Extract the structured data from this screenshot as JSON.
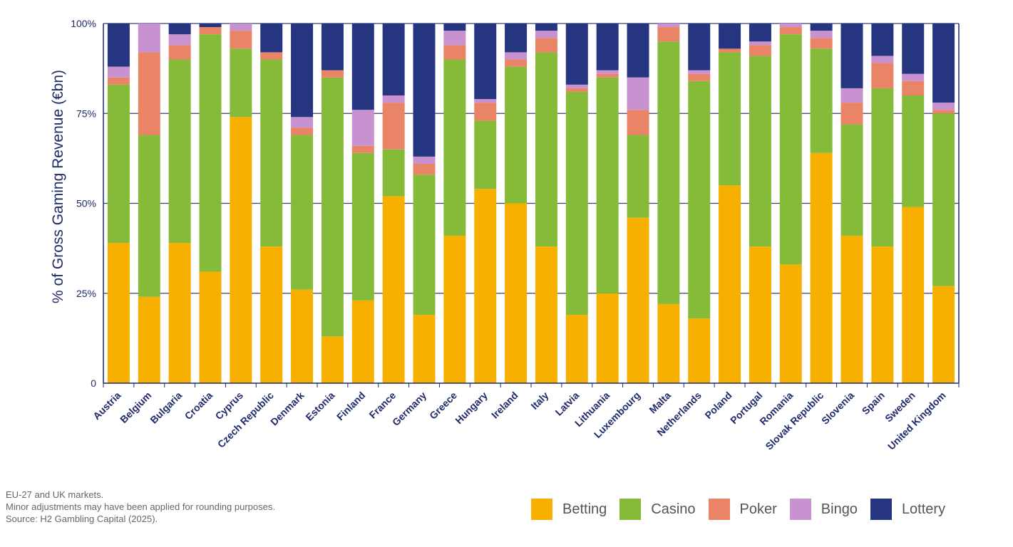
{
  "chart_data": {
    "type": "bar",
    "stacked": true,
    "ylabel": "% of Gross Gaming Revenue (€bn)",
    "xlabel": "",
    "ylim": [
      0,
      100
    ],
    "yticks": [
      0,
      25,
      50,
      75,
      100
    ],
    "ytick_labels": [
      "0",
      "25%",
      "50%",
      "75%",
      "100%"
    ],
    "grid": true,
    "legend_position": "bottom-right",
    "categories": [
      "Austria",
      "Belgium",
      "Bulgaria",
      "Croatia",
      "Cyprus",
      "Czech Republic",
      "Denmark",
      "Estonia",
      "Finland",
      "France",
      "Germany",
      "Greece",
      "Hungary",
      "Ireland",
      "Italy",
      "Latvia",
      "Lithuania",
      "Luxembourg",
      "Malta",
      "Netherlands",
      "Poland",
      "Portugal",
      "Romania",
      "Slovak Republic",
      "Slovenia",
      "Spain",
      "Sweden",
      "United Kingdom"
    ],
    "series": [
      {
        "name": "Betting",
        "color": "#f7b000",
        "values": [
          39,
          24,
          39,
          31,
          74,
          38,
          26,
          13,
          23,
          52,
          19,
          41,
          54,
          50,
          38,
          19,
          25,
          46,
          22,
          18,
          55,
          38,
          33,
          64,
          41,
          38,
          49,
          27
        ]
      },
      {
        "name": "Casino",
        "color": "#86bb39",
        "values": [
          44,
          45,
          51,
          66,
          19,
          52,
          43,
          72,
          41,
          13,
          39,
          49,
          19,
          38,
          54,
          62,
          60,
          23,
          73,
          66,
          37,
          53,
          64,
          29,
          31,
          44,
          31,
          48
        ]
      },
      {
        "name": "Poker",
        "color": "#ea8466",
        "values": [
          2,
          23,
          4,
          2,
          5,
          2,
          2,
          2,
          2,
          13,
          3,
          4,
          5,
          2,
          4,
          1,
          1,
          7,
          4,
          2,
          1,
          3,
          2,
          3,
          6,
          7,
          4,
          1
        ]
      },
      {
        "name": "Bingo",
        "color": "#c891d0",
        "values": [
          3,
          8,
          3,
          0,
          2,
          0,
          3,
          0,
          10,
          2,
          2,
          4,
          1,
          2,
          2,
          1,
          1,
          9,
          1,
          1,
          0,
          1,
          1,
          2,
          4,
          2,
          2,
          2
        ]
      },
      {
        "name": "Lottery",
        "color": "#263580",
        "values": [
          12,
          0,
          3,
          1,
          0,
          8,
          26,
          13,
          24,
          20,
          37,
          2,
          21,
          8,
          2,
          17,
          13,
          15,
          0,
          13,
          7,
          5,
          0,
          2,
          18,
          9,
          14,
          22
        ]
      }
    ]
  },
  "notes": [
    "EU-27 and UK markets.",
    "Minor adjustments may have been applied for rounding purposes.",
    "Source: H2 Gambling Capital (2025)."
  ],
  "legend": [
    {
      "label": "Betting",
      "color": "#f7b000"
    },
    {
      "label": "Casino",
      "color": "#86bb39"
    },
    {
      "label": "Poker",
      "color": "#ea8466"
    },
    {
      "label": "Bingo",
      "color": "#c891d0"
    },
    {
      "label": "Lottery",
      "color": "#263580"
    }
  ]
}
